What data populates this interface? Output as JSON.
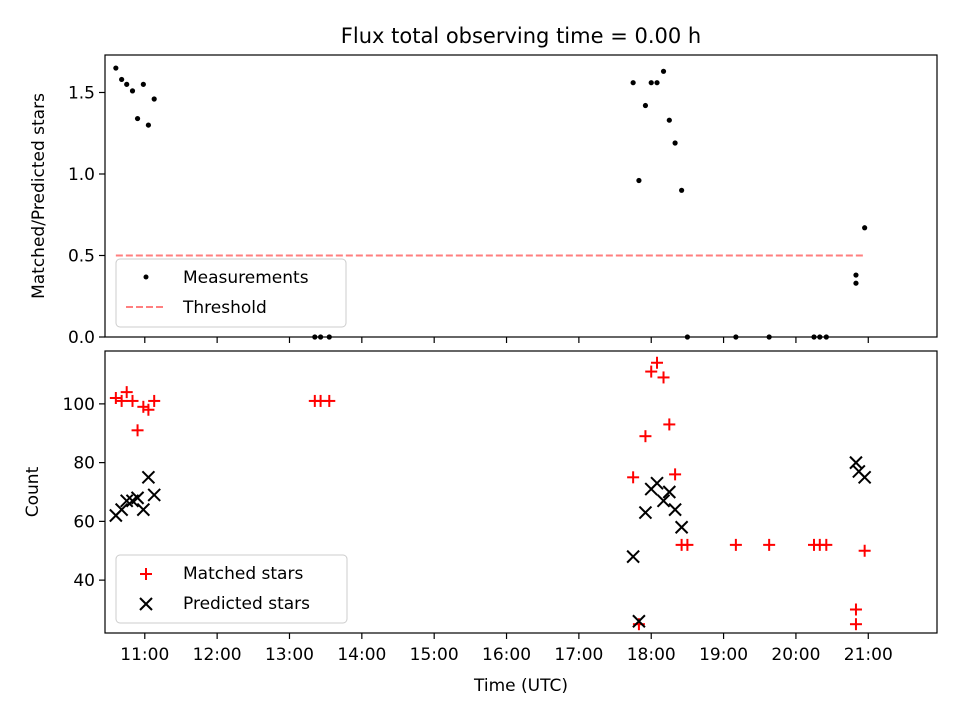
{
  "figure_title": "Flux total observing time = 0.00 h",
  "xlabel": "Time (UTC)",
  "x_ticks": [
    "11:00",
    "12:00",
    "13:00",
    "14:00",
    "15:00",
    "16:00",
    "17:00",
    "18:00",
    "19:00",
    "20:00",
    "21:00"
  ],
  "colors": {
    "measurements": "#000000",
    "threshold": "#ff7f7f",
    "matched": "#ff0000",
    "predicted": "#000000"
  },
  "chart_data": [
    {
      "type": "scatter",
      "title": "Flux total observing time = 0.00 h",
      "xlabel": "",
      "ylabel": "Matched/Predicted stars",
      "xlim": [
        10.45,
        21.95
      ],
      "ylim": [
        0,
        1.73
      ],
      "yticks": [
        0.0,
        0.5,
        1.0,
        1.5
      ],
      "ytick_labels": [
        "0.0",
        "0.5",
        "1.0",
        "1.5"
      ],
      "legend": {
        "placement": "lower-left",
        "entries": [
          "Measurements",
          "Threshold"
        ]
      },
      "series": [
        {
          "name": "Measurements",
          "marker": "dot",
          "points": [
            [
              10.6,
              1.65
            ],
            [
              10.68,
              1.58
            ],
            [
              10.75,
              1.55
            ],
            [
              10.83,
              1.51
            ],
            [
              10.9,
              1.34
            ],
            [
              10.98,
              1.55
            ],
            [
              11.05,
              1.3
            ],
            [
              11.13,
              1.46
            ],
            [
              13.35,
              0.0
            ],
            [
              13.43,
              0.0
            ],
            [
              13.55,
              0.0
            ],
            [
              17.75,
              1.56
            ],
            [
              17.83,
              0.96
            ],
            [
              17.92,
              1.42
            ],
            [
              18.0,
              1.56
            ],
            [
              18.08,
              1.56
            ],
            [
              18.17,
              1.63
            ],
            [
              18.25,
              1.33
            ],
            [
              18.33,
              1.19
            ],
            [
              18.42,
              0.9
            ],
            [
              18.5,
              0.0
            ],
            [
              19.17,
              0.0
            ],
            [
              19.63,
              0.0
            ],
            [
              20.25,
              0.0
            ],
            [
              20.33,
              0.0
            ],
            [
              20.42,
              0.0
            ],
            [
              20.83,
              0.38
            ],
            [
              20.83,
              0.33
            ],
            [
              20.95,
              0.67
            ]
          ]
        },
        {
          "name": "Threshold",
          "style": "dashed-line",
          "points": [
            [
              10.6,
              0.5
            ],
            [
              20.95,
              0.5
            ]
          ]
        }
      ]
    },
    {
      "type": "scatter",
      "title": "",
      "xlabel": "Time (UTC)",
      "ylabel": "Count",
      "xlim": [
        10.45,
        21.95
      ],
      "ylim": [
        22,
        118
      ],
      "yticks": [
        40,
        60,
        80,
        100
      ],
      "ytick_labels": [
        "40",
        "60",
        "80",
        "100"
      ],
      "legend": {
        "placement": "lower-left",
        "entries": [
          "Matched stars",
          "Predicted stars"
        ]
      },
      "series": [
        {
          "name": "Matched stars",
          "marker": "plus",
          "points": [
            [
              10.6,
              102
            ],
            [
              10.68,
              101
            ],
            [
              10.75,
              104
            ],
            [
              10.83,
              101
            ],
            [
              10.9,
              91
            ],
            [
              10.98,
              99
            ],
            [
              11.05,
              98
            ],
            [
              11.13,
              101
            ],
            [
              13.35,
              101
            ],
            [
              13.43,
              101
            ],
            [
              13.55,
              101
            ],
            [
              17.75,
              75
            ],
            [
              17.83,
              25
            ],
            [
              17.92,
              89
            ],
            [
              18.0,
              111
            ],
            [
              18.08,
              114
            ],
            [
              18.17,
              109
            ],
            [
              18.25,
              93
            ],
            [
              18.33,
              76
            ],
            [
              18.42,
              52
            ],
            [
              18.5,
              52
            ],
            [
              19.17,
              52
            ],
            [
              19.63,
              52
            ],
            [
              20.25,
              52
            ],
            [
              20.33,
              52
            ],
            [
              20.42,
              52
            ],
            [
              20.83,
              30
            ],
            [
              20.83,
              25
            ],
            [
              20.95,
              50
            ]
          ]
        },
        {
          "name": "Predicted stars",
          "marker": "x",
          "points": [
            [
              10.6,
              62
            ],
            [
              10.68,
              64
            ],
            [
              10.75,
              67
            ],
            [
              10.83,
              67
            ],
            [
              10.9,
              68
            ],
            [
              10.98,
              64
            ],
            [
              11.05,
              75
            ],
            [
              11.13,
              69
            ],
            [
              17.75,
              48
            ],
            [
              17.83,
              26
            ],
            [
              17.92,
              63
            ],
            [
              18.0,
              71
            ],
            [
              18.08,
              73
            ],
            [
              18.17,
              67
            ],
            [
              18.25,
              70
            ],
            [
              18.33,
              64
            ],
            [
              18.42,
              58
            ],
            [
              20.83,
              80
            ],
            [
              20.87,
              77
            ],
            [
              20.95,
              75
            ]
          ]
        }
      ]
    }
  ]
}
